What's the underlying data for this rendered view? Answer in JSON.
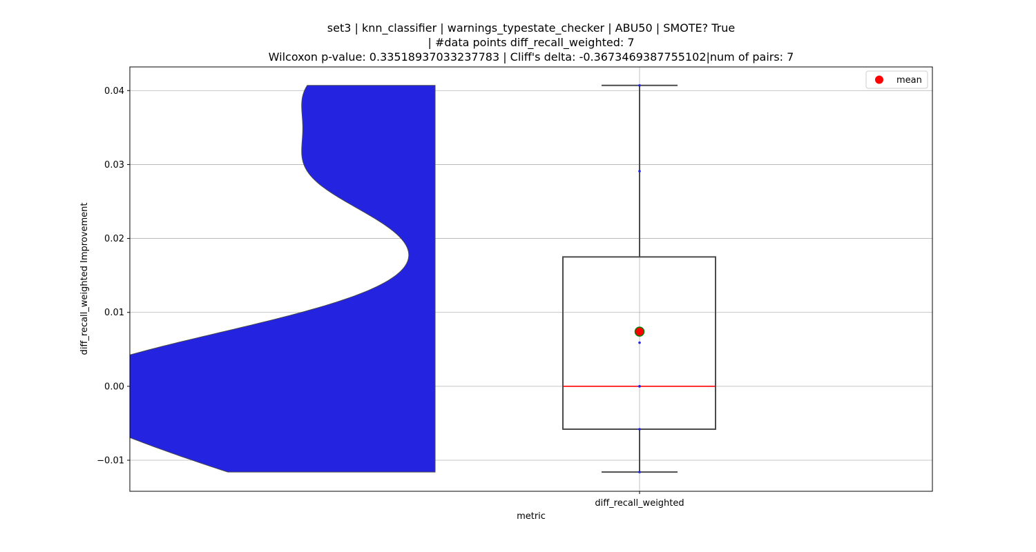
{
  "chart_data": {
    "type": "violin+box",
    "title_lines": [
      "set3 | knn_classifier | warnings_typestate_checker | ABU50 | SMOTE? True",
      "| #data points diff_recall_weighted: 7",
      "Wilcoxon p-value: 0.33518937033237783 | Cliff's delta: -0.3673469387755102|num of pairs: 7"
    ],
    "xlabel": "metric",
    "ylabel": "diff_recall_weighted Improvement",
    "categories": [
      "diff_recall_weighted"
    ],
    "ylim": [
      -0.0142,
      0.0432
    ],
    "yticks": [
      -0.01,
      0.0,
      0.01,
      0.02,
      0.03,
      0.04
    ],
    "ytick_labels": [
      "−0.01",
      "0.00",
      "0.01",
      "0.02",
      "0.03",
      "0.04"
    ],
    "grid": true,
    "legend": {
      "position": "top-right",
      "entries": [
        {
          "label": "mean",
          "color": "#ff0000"
        }
      ]
    },
    "points": [
      -0.0116,
      -0.0058,
      0.0,
      0.0,
      0.0059,
      0.0291,
      0.0407
    ],
    "box": {
      "whisker_low": -0.0116,
      "q1": -0.0058,
      "median": 0.0,
      "q3": 0.0175,
      "whisker_high": 0.0407,
      "mean": 0.0074
    },
    "violin_color": "#2323e0",
    "box_edge_color": "#4a4a4a",
    "median_color": "#ff0000",
    "mean_color": "#ff0000",
    "mean_edge_color": "#008000",
    "point_color": "#2323e0"
  }
}
